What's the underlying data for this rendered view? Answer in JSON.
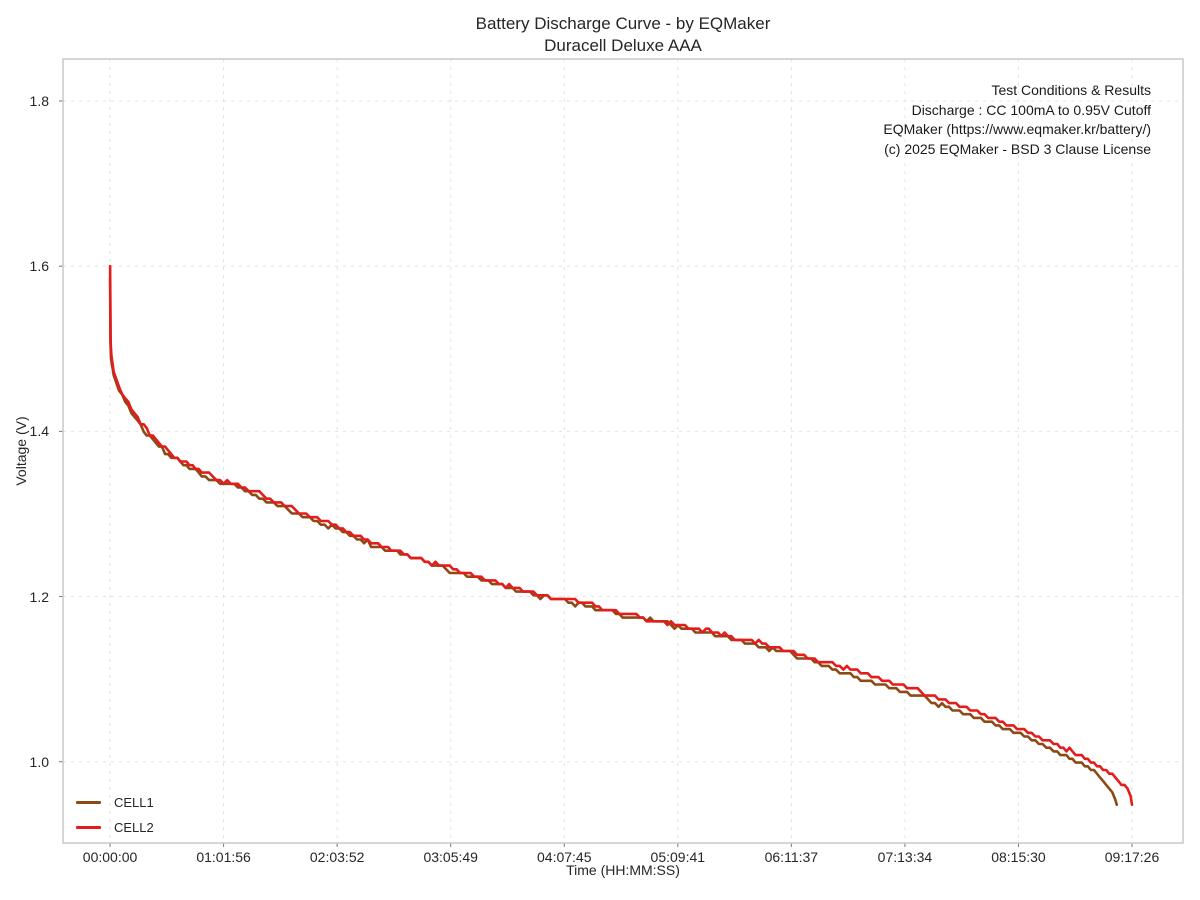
{
  "figure": {
    "title_line1": "Battery Discharge Curve - by EQMaker",
    "title_line2": "Duracell Deluxe AAA"
  },
  "annotation": {
    "lines": [
      "Test Conditions & Results",
      "Discharge : CC 100mA to 0.95V Cutoff",
      "EQMaker (https://www.eqmaker.kr/battery/)",
      "(c) 2025 EQMaker - BSD 3 Clause License"
    ]
  },
  "colors": {
    "spine": "#c9c9c9",
    "grid": "#e2e2e2",
    "tick_mark": "#777777",
    "text": "#262626",
    "cell1": "#8c4a15",
    "cell2": "#e41c1c"
  },
  "chart_data": {
    "type": "line",
    "title": "Battery Discharge Curve - by EQMaker",
    "subtitle": "Duracell Deluxe AAA",
    "xlabel": "Time (HH:MM:SS)",
    "ylabel": "Voltage (V)",
    "x_unit": "seconds",
    "grid": "dashed, both axes, major ticks only",
    "legend_position": "lower-left",
    "cutoff_voltage": 0.95,
    "x_range_s": [
      -1540,
      35115
    ],
    "y_range_v": [
      0.9016,
      1.8508
    ],
    "y_ticks": [
      "1.0",
      "1.2",
      "1.4",
      "1.6",
      "1.8"
    ],
    "x_ticks": [
      {
        "s": 0,
        "label": "00:00:00"
      },
      {
        "s": 3716,
        "label": "01:01:56"
      },
      {
        "s": 7432,
        "label": "02:03:52"
      },
      {
        "s": 11149,
        "label": "03:05:49"
      },
      {
        "s": 14865,
        "label": "04:07:45"
      },
      {
        "s": 18581,
        "label": "05:09:41"
      },
      {
        "s": 22297,
        "label": "06:11:37"
      },
      {
        "s": 26014,
        "label": "07:13:34"
      },
      {
        "s": 29730,
        "label": "08:15:30"
      },
      {
        "s": 33446,
        "label": "09:17:26"
      }
    ],
    "series": [
      {
        "name": "CELL1",
        "color": "#8c4a15",
        "points": [
          [
            0,
            1.585
          ],
          [
            12,
            1.51
          ],
          [
            30,
            1.488
          ],
          [
            120,
            1.468
          ],
          [
            300,
            1.449
          ],
          [
            600,
            1.429
          ],
          [
            900,
            1.412
          ],
          [
            1200,
            1.398
          ],
          [
            1600,
            1.383
          ],
          [
            2000,
            1.369
          ],
          [
            2500,
            1.358
          ],
          [
            3000,
            1.348
          ],
          [
            3600,
            1.338
          ],
          [
            4300,
            1.331
          ],
          [
            5000,
            1.318
          ],
          [
            5600,
            1.309
          ],
          [
            6300,
            1.298
          ],
          [
            6900,
            1.289
          ],
          [
            7500,
            1.28
          ],
          [
            8200,
            1.268
          ],
          [
            9000,
            1.257
          ],
          [
            9500,
            1.251
          ],
          [
            10300,
            1.242
          ],
          [
            11000,
            1.233
          ],
          [
            11800,
            1.224
          ],
          [
            12500,
            1.217
          ],
          [
            13400,
            1.207
          ],
          [
            14200,
            1.2
          ],
          [
            15000,
            1.194
          ],
          [
            16000,
            1.185
          ],
          [
            17000,
            1.176
          ],
          [
            17900,
            1.169
          ],
          [
            18700,
            1.162
          ],
          [
            19500,
            1.156
          ],
          [
            20000,
            1.152
          ],
          [
            21000,
            1.143
          ],
          [
            21800,
            1.135
          ],
          [
            22600,
            1.127
          ],
          [
            23400,
            1.117
          ],
          [
            24000,
            1.106
          ],
          [
            24800,
            1.099
          ],
          [
            25500,
            1.089
          ],
          [
            26200,
            1.082
          ],
          [
            27000,
            1.072
          ],
          [
            27800,
            1.061
          ],
          [
            28500,
            1.051
          ],
          [
            29100,
            1.042
          ],
          [
            29800,
            1.032
          ],
          [
            30400,
            1.022
          ],
          [
            31000,
            1.012
          ],
          [
            31500,
            1.003
          ],
          [
            32000,
            0.993
          ],
          [
            32300,
            0.985
          ],
          [
            32600,
            0.974
          ],
          [
            32800,
            0.962
          ],
          [
            32900,
            0.953
          ],
          [
            32950,
            0.948
          ]
        ]
      },
      {
        "name": "CELL2",
        "color": "#e41c1c",
        "points": [
          [
            0,
            1.6
          ],
          [
            10,
            1.552
          ],
          [
            20,
            1.506
          ],
          [
            45,
            1.492
          ],
          [
            120,
            1.472
          ],
          [
            300,
            1.452
          ],
          [
            600,
            1.432
          ],
          [
            900,
            1.415
          ],
          [
            1200,
            1.401
          ],
          [
            1600,
            1.386
          ],
          [
            2000,
            1.372
          ],
          [
            2500,
            1.361
          ],
          [
            3000,
            1.351
          ],
          [
            3600,
            1.341
          ],
          [
            4300,
            1.334
          ],
          [
            5000,
            1.322
          ],
          [
            5600,
            1.312
          ],
          [
            6300,
            1.301
          ],
          [
            6900,
            1.292
          ],
          [
            7500,
            1.283
          ],
          [
            8200,
            1.271
          ],
          [
            9000,
            1.26
          ],
          [
            9500,
            1.253
          ],
          [
            10300,
            1.244
          ],
          [
            11000,
            1.235
          ],
          [
            11800,
            1.226
          ],
          [
            12500,
            1.219
          ],
          [
            13400,
            1.209
          ],
          [
            14200,
            1.202
          ],
          [
            15000,
            1.196
          ],
          [
            16000,
            1.187
          ],
          [
            17000,
            1.178
          ],
          [
            17900,
            1.171
          ],
          [
            18700,
            1.164
          ],
          [
            19500,
            1.158
          ],
          [
            20000,
            1.155
          ],
          [
            21000,
            1.146
          ],
          [
            21800,
            1.139
          ],
          [
            22600,
            1.131
          ],
          [
            23400,
            1.121
          ],
          [
            24000,
            1.114
          ],
          [
            24800,
            1.105
          ],
          [
            25500,
            1.097
          ],
          [
            26200,
            1.089
          ],
          [
            27000,
            1.079
          ],
          [
            27800,
            1.068
          ],
          [
            28500,
            1.058
          ],
          [
            29100,
            1.048
          ],
          [
            29800,
            1.039
          ],
          [
            30400,
            1.03
          ],
          [
            31000,
            1.02
          ],
          [
            31500,
            1.012
          ],
          [
            32000,
            1.003
          ],
          [
            32400,
            0.995
          ],
          [
            32800,
            0.985
          ],
          [
            33100,
            0.975
          ],
          [
            33300,
            0.964
          ],
          [
            33400,
            0.955
          ],
          [
            33446,
            0.948
          ]
        ]
      }
    ]
  }
}
